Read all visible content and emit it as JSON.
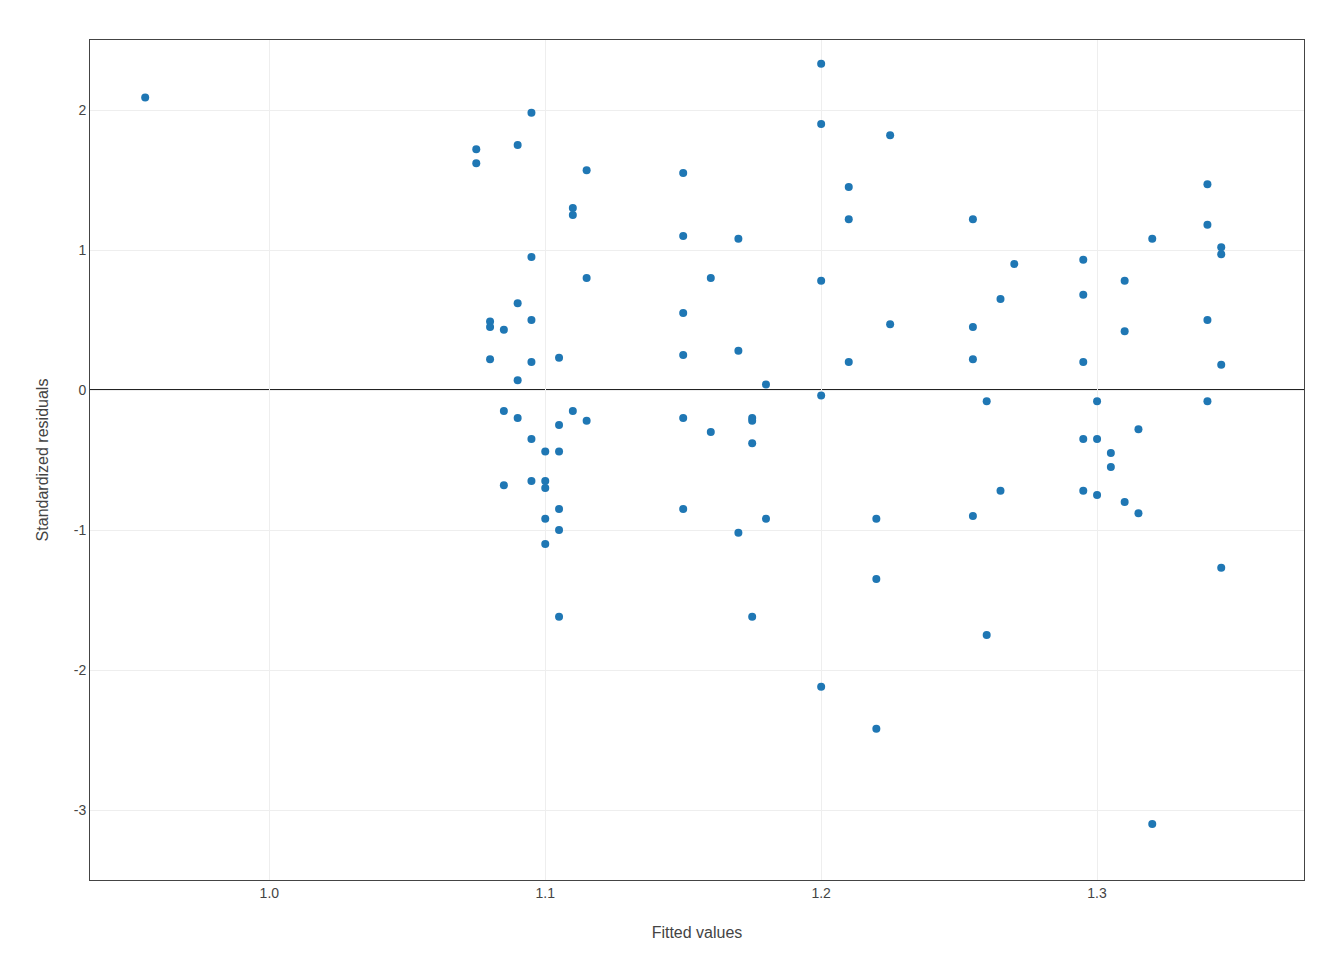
{
  "chart_data": {
    "type": "scatter",
    "xlabel": "Fitted values",
    "ylabel": "Standardized residuals",
    "x": [
      0.955,
      1.075,
      1.075,
      1.08,
      1.08,
      1.08,
      1.085,
      1.085,
      1.085,
      1.09,
      1.09,
      1.09,
      1.09,
      1.095,
      1.095,
      1.095,
      1.095,
      1.095,
      1.095,
      1.1,
      1.1,
      1.1,
      1.1,
      1.1,
      1.105,
      1.105,
      1.105,
      1.105,
      1.105,
      1.105,
      1.11,
      1.11,
      1.11,
      1.115,
      1.115,
      1.115,
      1.15,
      1.15,
      1.15,
      1.15,
      1.15,
      1.15,
      1.16,
      1.16,
      1.17,
      1.17,
      1.17,
      1.175,
      1.175,
      1.175,
      1.175,
      1.18,
      1.18,
      1.2,
      1.2,
      1.2,
      1.2,
      1.2,
      1.21,
      1.21,
      1.21,
      1.22,
      1.22,
      1.22,
      1.225,
      1.225,
      1.255,
      1.255,
      1.255,
      1.255,
      1.26,
      1.26,
      1.265,
      1.265,
      1.27,
      1.295,
      1.295,
      1.295,
      1.295,
      1.295,
      1.3,
      1.3,
      1.3,
      1.305,
      1.305,
      1.31,
      1.31,
      1.31,
      1.315,
      1.315,
      1.32,
      1.32,
      1.34,
      1.34,
      1.34,
      1.34,
      1.345,
      1.345,
      1.345,
      1.345
    ],
    "values": [
      2.09,
      1.62,
      1.72,
      0.49,
      0.45,
      0.22,
      0.43,
      -0.15,
      -0.68,
      1.75,
      0.62,
      0.07,
      -0.2,
      1.98,
      0.95,
      0.5,
      0.2,
      -0.35,
      -0.65,
      -0.44,
      -0.65,
      -0.7,
      -0.92,
      -1.1,
      0.23,
      -0.25,
      -0.44,
      -0.85,
      -1.0,
      -1.62,
      1.25,
      1.3,
      -0.15,
      1.57,
      0.8,
      -0.22,
      1.55,
      1.1,
      0.55,
      0.25,
      -0.2,
      -0.85,
      0.8,
      -0.3,
      1.08,
      0.28,
      -1.02,
      -0.2,
      -0.22,
      -0.38,
      -1.62,
      0.04,
      -0.92,
      2.33,
      1.9,
      0.78,
      -0.04,
      -2.12,
      1.45,
      1.22,
      0.2,
      -0.92,
      -1.35,
      -2.42,
      1.82,
      0.47,
      1.22,
      0.45,
      0.22,
      -0.9,
      -0.08,
      -1.75,
      0.65,
      -0.72,
      0.9,
      0.93,
      0.68,
      0.2,
      -0.35,
      -0.72,
      -0.08,
      -0.35,
      -0.75,
      -0.45,
      -0.55,
      0.78,
      0.42,
      -0.8,
      -0.28,
      -0.88,
      1.08,
      -3.1,
      1.47,
      1.18,
      0.5,
      -0.08,
      1.02,
      0.97,
      0.18,
      -1.27
    ],
    "hline": 0,
    "xlim": [
      0.935,
      1.375
    ],
    "ylim": [
      -3.5,
      2.5
    ],
    "xticks": [
      {
        "value": 1.0,
        "label": "1.0"
      },
      1.1,
      1.2,
      1.3
    ],
    "yticks": [
      -3,
      -2,
      -1,
      0,
      1,
      2
    ],
    "grid": true
  }
}
